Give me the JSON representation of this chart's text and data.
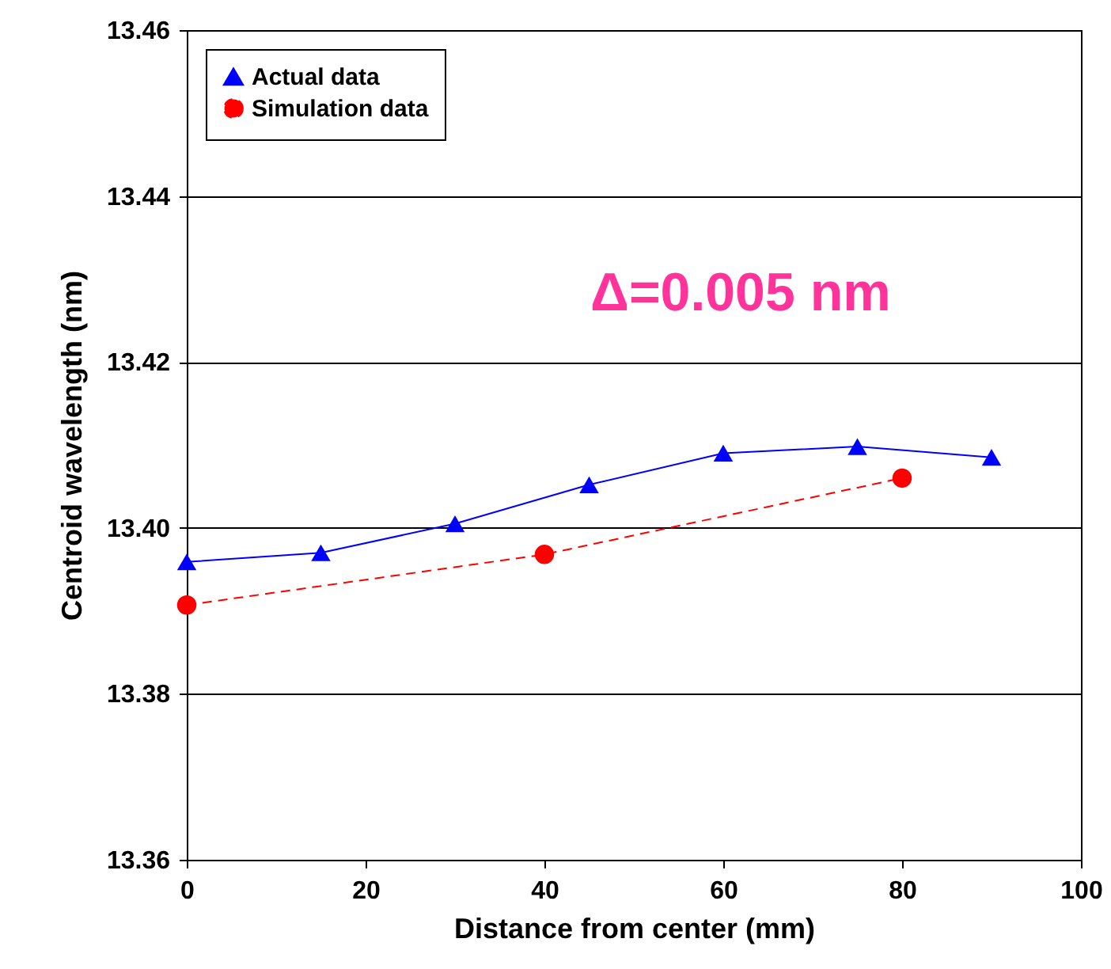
{
  "chart_data": {
    "type": "line",
    "xlabel": "Distance from center (mm)",
    "ylabel": "Centroid wavelength (nm)",
    "xlim": [
      0,
      100
    ],
    "xticks": [
      0,
      20,
      40,
      60,
      80,
      100
    ],
    "ylim": [
      13.36,
      13.46
    ],
    "yticks": [
      13.36,
      13.38,
      {
        "value": 13.4,
        "label": "13.40"
      },
      13.42,
      13.44,
      13.46
    ],
    "grid": "y",
    "legend": "top left",
    "annotations": [
      "Δ=0.005 nm"
    ],
    "series": [
      {
        "name": "Actual data",
        "color": "#0000ff",
        "marker": "triangle",
        "line_style": "solid",
        "x": [
          0,
          15,
          30,
          45,
          60,
          75,
          90
        ],
        "values": [
          13.3959,
          13.397,
          13.4005,
          13.4052,
          13.409,
          13.4098,
          13.4085
        ]
      },
      {
        "name": "Simulation data",
        "color": "#ff0000",
        "marker": "circle",
        "line_style": "dashed",
        "x": [
          0,
          40,
          80
        ],
        "values": [
          13.3907,
          13.3968,
          13.406
        ]
      }
    ]
  }
}
